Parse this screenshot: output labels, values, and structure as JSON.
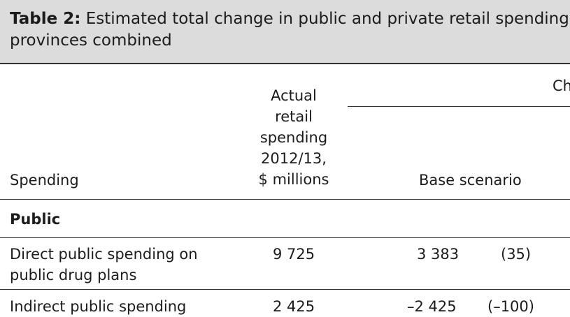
{
  "caption": {
    "label": "Table 2:",
    "text": " Estimated total change in public and private retail spending\nprovinces combined"
  },
  "header": {
    "spending": "Spending",
    "actual": "Actual\nretail\nspending\n2012/13,\n$ millions",
    "change_partial": "Ch",
    "base_scenario": "Base scenario"
  },
  "rows": [
    {
      "label": "Public",
      "section": true
    },
    {
      "label": "Direct public spending on\npublic drug plans",
      "actual": "9 725",
      "base": "3 383",
      "pct": "(35)"
    },
    {
      "label": "Indirect public spending",
      "actual": "2 425",
      "base": "–2 425",
      "pct": "(–100)"
    }
  ]
}
